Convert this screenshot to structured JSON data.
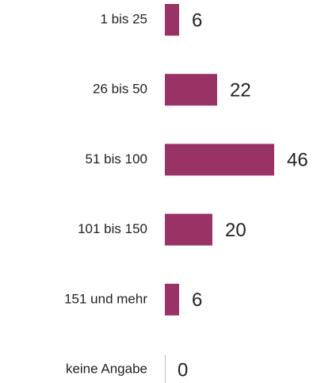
{
  "chart_data": {
    "type": "barh",
    "categories": [
      "1 bis 25",
      "26 bis 50",
      "51 bis 100",
      "101 bis 150",
      "151 und mehr",
      "keine Angabe"
    ],
    "values": [
      6,
      22,
      46,
      20,
      6,
      0
    ],
    "color": "#993366"
  }
}
